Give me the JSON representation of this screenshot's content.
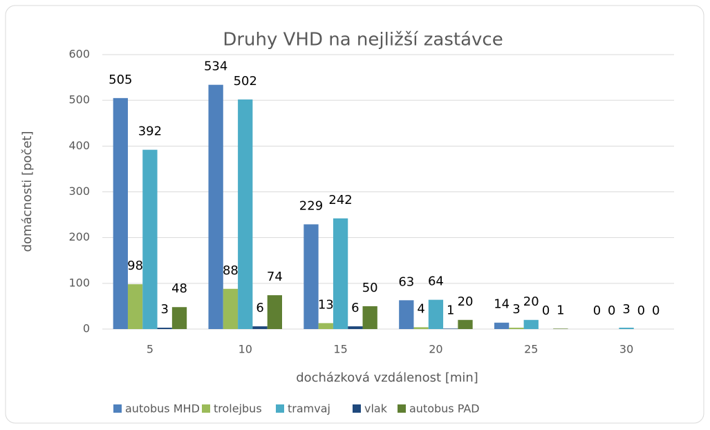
{
  "chart_data": {
    "type": "bar",
    "title": "Druhy VHD na nejližší zastávce",
    "x_label": "docházková vzdálenost [min]",
    "y_label": "domácnosti [počet]",
    "categories": [
      "5",
      "10",
      "15",
      "20",
      "25",
      "30"
    ],
    "series": [
      {
        "name": "autobus MHD",
        "color": "#4f81bd",
        "values": [
          505,
          534,
          229,
          63,
          14,
          0
        ]
      },
      {
        "name": "trolejbus",
        "color": "#9bbb59",
        "values": [
          98,
          88,
          13,
          4,
          3,
          0
        ]
      },
      {
        "name": "tramvaj",
        "color": "#4bacc6",
        "values": [
          392,
          502,
          242,
          64,
          20,
          3
        ]
      },
      {
        "name": "vlak",
        "color": "#1f497d",
        "values": [
          3,
          6,
          6,
          1,
          0,
          0
        ]
      },
      {
        "name": "autobus PAD",
        "color": "#5f7f32",
        "values": [
          48,
          74,
          50,
          20,
          1,
          0
        ]
      }
    ],
    "ylim": [
      0,
      600
    ],
    "yticks": [
      0,
      100,
      200,
      300,
      400,
      500,
      600
    ],
    "grid": true,
    "legend": "bottom"
  }
}
